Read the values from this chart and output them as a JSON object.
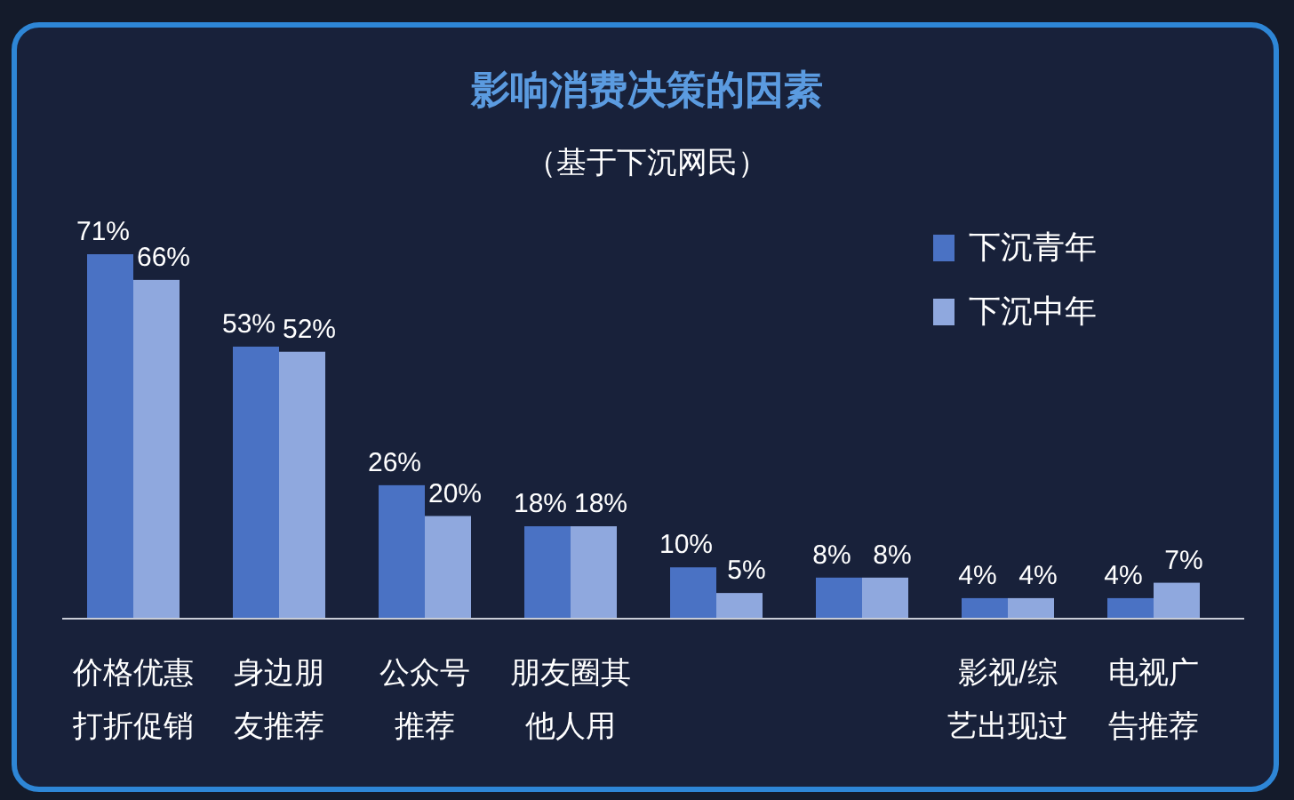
{
  "chart_data": {
    "type": "bar",
    "title": "影响消费决策的因素",
    "subtitle": "（基于下沉网民）",
    "categories": [
      "价格优惠打折促销",
      "身边朋友推荐",
      "公众号推荐",
      "朋友圈其他人用",
      null,
      null,
      "影视/综艺出现过",
      "电视广告推荐"
    ],
    "series": [
      {
        "name": "下沉青年",
        "color": "#4a72c4",
        "values": [
          71,
          53,
          26,
          18,
          10,
          8,
          4,
          4
        ],
        "value_labels": [
          "71%",
          "53%",
          "26%",
          "18%",
          "10%",
          "8%",
          "4%",
          "4%"
        ]
      },
      {
        "name": "下沉中年",
        "color": "#8fa8de",
        "values": [
          66,
          52,
          20,
          18,
          5,
          8,
          4,
          7
        ],
        "value_labels": [
          "66%",
          "52%",
          "20%",
          "18%",
          "5%",
          "8%",
          "4%",
          "7%"
        ]
      }
    ],
    "legend": "top right"
  }
}
